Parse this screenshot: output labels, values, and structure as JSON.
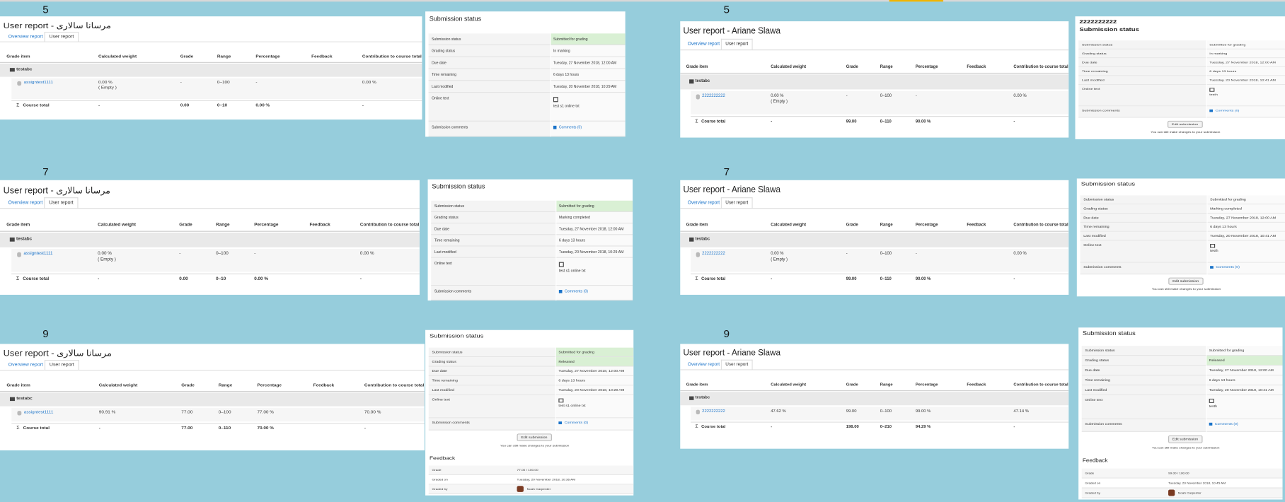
{
  "tabs": [
    "Overview report",
    "User report"
  ],
  "grade_columns": [
    "Grade item",
    "Calculated weight",
    "Grade",
    "Range",
    "Percentage",
    "Feedback",
    "Contribution to course total"
  ],
  "category": "testabc",
  "total_label": "Course total",
  "status_title": "Submission status",
  "status_labels": [
    "Submission status",
    "Grading status",
    "Due date",
    "Time remaining",
    "Last modified",
    "Online text",
    "Submission comments"
  ],
  "feedback_title": "Feedback",
  "feedback_labels": [
    "Grade",
    "Graded on",
    "Graded by"
  ],
  "panels": [
    {
      "label": "5",
      "grade": {
        "title": "User report - مرسانا سالاری",
        "item": "assigntest1111",
        "item_row": [
          "0.00 %",
          "-",
          "0–100",
          "-",
          "0.00 %"
        ],
        "empty_note": "( Empty )",
        "total_row": [
          "-",
          "0.00",
          "0–10",
          "0.00 %",
          "-"
        ]
      },
      "status": {
        "values": [
          "Submitted for grading",
          "In marking",
          "Tuesday, 27 November 2018, 12:00 AM",
          "6 days 13 hours",
          "Tuesday, 20 November 2018, 10:29 AM",
          "test s1 online txt",
          "Comments (0)"
        ],
        "highlighted_rows": [
          0
        ]
      }
    },
    {
      "label": "5",
      "grade": {
        "title": "User report - Ariane Slawa",
        "item": "2222222222",
        "item_row": [
          "0.00 %",
          "-",
          "0–100",
          "-",
          "0.00 %"
        ],
        "empty_note": "( Empty )",
        "total_row": [
          "-",
          "99.00",
          "0–110",
          "90.00 %",
          "-"
        ]
      },
      "status": {
        "heading": "2222222222",
        "values": [
          "Submitted for grading",
          "In marking",
          "Tuesday, 27 November 2018, 12:00 AM",
          "6 days 13 hours",
          "Tuesday, 20 November 2018, 10:41 AM",
          "testh",
          "Comments (0)"
        ],
        "highlighted_rows": [],
        "button": "Edit submission",
        "note": "You can still make changes to your submission"
      }
    },
    {
      "label": "7",
      "grade": {
        "title": "User report - مرسانا سالاری",
        "item": "assigntest1111",
        "item_row": [
          "0.00 %",
          "-",
          "0–100",
          "-",
          "0.00 %"
        ],
        "empty_note": "( Empty )",
        "total_row": [
          "-",
          "0.00",
          "0–10",
          "0.00 %",
          "-"
        ]
      },
      "status": {
        "values": [
          "Submitted for grading",
          "Marking completed",
          "Tuesday, 27 November 2018, 12:00 AM",
          "6 days 13 hours",
          "Tuesday, 20 November 2018, 10:29 AM",
          "test s1 online txt",
          "Comments (0)"
        ],
        "highlighted_rows": [
          0
        ]
      }
    },
    {
      "label": "7",
      "grade": {
        "title": "User report - Ariane Slawa",
        "item": "2222222222",
        "item_row": [
          "0.00 %",
          "-",
          "0–100",
          "-",
          "0.00 %"
        ],
        "empty_note": "( Empty )",
        "total_row": [
          "-",
          "99.00",
          "0–110",
          "90.00 %",
          "-"
        ]
      },
      "status": {
        "values": [
          "Submitted for grading",
          "Marking completed",
          "Tuesday, 27 November 2018, 12:00 AM",
          "6 days 13 hours",
          "Tuesday, 20 November 2018, 10:41 AM",
          "testh",
          "Comments (0)"
        ],
        "highlighted_rows": [],
        "button": "Edit submission",
        "note": "You can still make changes to your submission"
      }
    },
    {
      "label": "9",
      "grade": {
        "title": "User report - مرسانا سالاری",
        "item": "assigntest1111",
        "item_row": [
          "90.91 %",
          "77.00",
          "0–100",
          "77.00 %",
          "70.00 %"
        ],
        "total_row": [
          "-",
          "77.00",
          "0–110",
          "70.00 %",
          "-"
        ]
      },
      "status": {
        "values": [
          "Submitted for grading",
          "Released",
          "Tuesday, 27 November 2018, 12:00 AM",
          "6 days 13 hours",
          "Tuesday, 20 November 2018, 10:29 AM",
          "test s1 online txt",
          "Comments (0)"
        ],
        "highlighted_rows": [
          0,
          1
        ],
        "button": "Edit submission",
        "note": "You can still make changes to your submission"
      },
      "feedback": [
        "77.00 / 100.00",
        "Tuesday, 20 November 2018, 10:36 AM",
        "Noah Carpenter"
      ]
    },
    {
      "label": "9",
      "grade": {
        "title": "User report - Ariane Slawa",
        "item": "2222222222",
        "item_row": [
          "47.62 %",
          "99.00",
          "0–100",
          "99.00 %",
          "47.14 %"
        ],
        "total_row": [
          "-",
          "198.00",
          "0–210",
          "94.29 %",
          "-"
        ]
      },
      "status": {
        "values": [
          "Submitted for grading",
          "Released",
          "Tuesday, 27 November 2018, 12:00 AM",
          "6 days 13 hours",
          "Tuesday, 20 November 2018, 10:41 AM",
          "testh",
          "Comments (0)"
        ],
        "highlighted_rows": [
          1
        ],
        "button": "Edit submission",
        "note": "You can still make changes to your submission"
      },
      "feedback": [
        "99.00 / 100.00",
        "Tuesday, 20 November 2018, 10:45 AM",
        "Noah Carpenter"
      ]
    }
  ]
}
